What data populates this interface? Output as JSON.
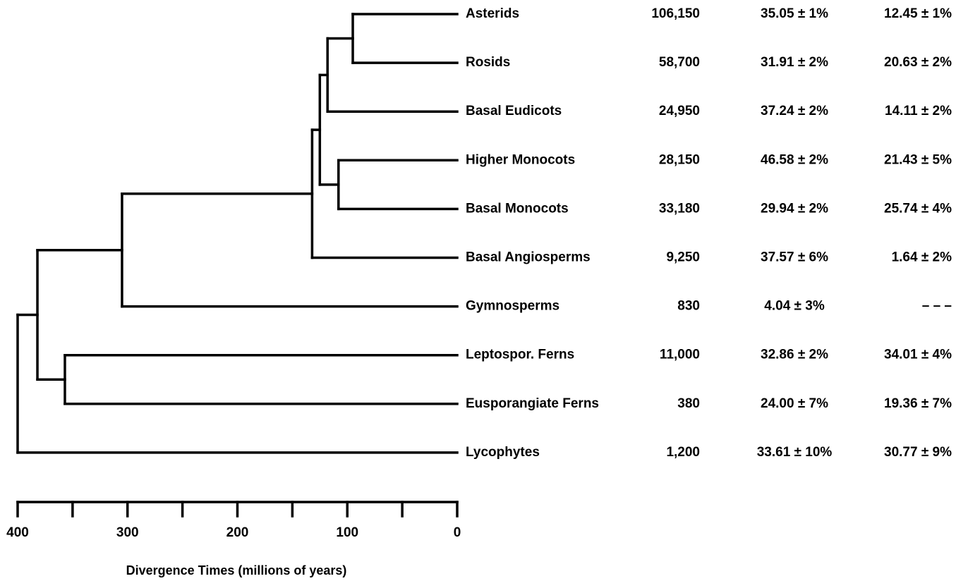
{
  "tree": {
    "taxa": [
      {
        "name": "Asterids",
        "species": "106,150",
        "value_a": "35.05 ± 1%",
        "value_b": "12.45 ± 1%"
      },
      {
        "name": "Rosids",
        "species": "58,700",
        "value_a": "31.91 ± 2%",
        "value_b": "20.63 ± 2%"
      },
      {
        "name": "Basal Eudicots",
        "species": "24,950",
        "value_a": "37.24 ± 2%",
        "value_b": "14.11 ± 2%"
      },
      {
        "name": "Higher Monocots",
        "species": "28,150",
        "value_a": "46.58 ± 2%",
        "value_b": "21.43 ± 5%"
      },
      {
        "name": "Basal Monocots",
        "species": "33,180",
        "value_a": "29.94 ± 2%",
        "value_b": "25.74 ± 4%"
      },
      {
        "name": "Basal Angiosperms",
        "species": "9,250",
        "value_a": "37.57 ± 6%",
        "value_b": "1.64 ± 2%"
      },
      {
        "name": "Gymnosperms",
        "species": "830",
        "value_a": "4.04 ± 3%",
        "value_b": "– – –"
      },
      {
        "name": "Leptospor. Ferns",
        "species": "11,000",
        "value_a": "32.86 ± 2%",
        "value_b": "34.01 ± 4%"
      },
      {
        "name": "Eusporangiate Ferns",
        "species": "380",
        "value_a": "24.00 ± 7%",
        "value_b": "19.36 ± 7%"
      },
      {
        "name": "Lycophytes",
        "species": "1,200",
        "value_a": "33.61 ± 10%",
        "value_b": "30.77 ± 9%"
      }
    ],
    "nodes_mya": {
      "asterids_rosids": 95,
      "eudicots": 118,
      "monocots": 108,
      "eudicots_monocots": 125,
      "angiosperms": 132,
      "seed_plants": 305,
      "ferns": 357,
      "euphyllophytes": 382,
      "vascular_plants": 400
    }
  },
  "axis": {
    "title": "Divergence Times (millions of years)",
    "min": 0,
    "max": 400,
    "major_ticks": [
      400,
      300,
      200,
      100,
      0
    ],
    "minor_ticks": [
      350,
      250,
      150,
      50
    ],
    "tick_labels": [
      "400",
      "300",
      "200",
      "100",
      "0"
    ]
  },
  "colors": {
    "line": "#000000",
    "text": "#000000",
    "background": "#ffffff"
  }
}
